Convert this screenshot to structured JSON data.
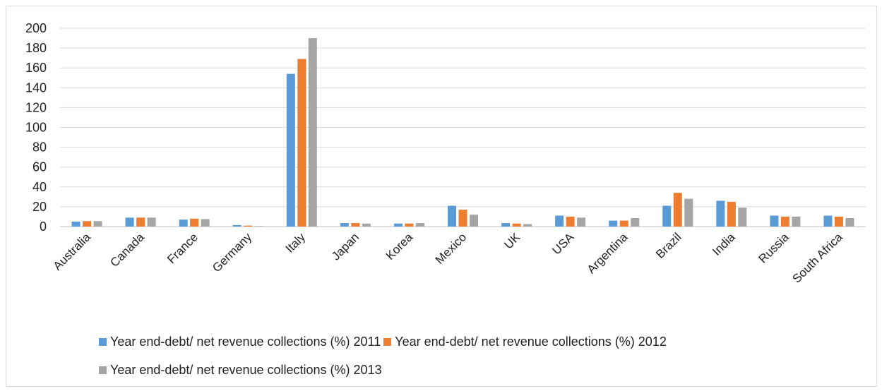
{
  "chart_data": {
    "type": "bar",
    "title": "",
    "xlabel": "",
    "ylabel": "",
    "ylim": [
      0,
      200
    ],
    "yticks": [
      0,
      20,
      40,
      60,
      80,
      100,
      120,
      140,
      160,
      180,
      200
    ],
    "grid": true,
    "legend_position": "bottom",
    "categories": [
      "Australia",
      "Canada",
      "France",
      "Germany",
      "Italy",
      "Japan",
      "Korea",
      "Mexico",
      "UK",
      "USA",
      "Argentina",
      "Brazil",
      "India",
      "Russia",
      "South Africa"
    ],
    "series": [
      {
        "name": "Year end-debt/ net revenue collections (%) 2011",
        "color": "#5b9bd5",
        "values": [
          5,
          9,
          7,
          1.5,
          154,
          3.5,
          3,
          21,
          3.5,
          11,
          6,
          21,
          26,
          11,
          11
        ]
      },
      {
        "name": "Year end-debt/ net revenue collections (%) 2012",
        "color": "#ed7d31",
        "values": [
          5.5,
          9,
          8,
          1,
          169,
          3.5,
          3,
          17,
          3,
          10,
          6,
          34,
          25,
          10,
          10
        ]
      },
      {
        "name": "Year end-debt/ net revenue collections (%) 2013",
        "color": "#a5a5a5",
        "values": [
          5.5,
          9,
          7.5,
          0.5,
          190,
          3,
          3.5,
          12,
          2.5,
          9,
          8.5,
          28,
          19,
          10,
          8.5
        ]
      }
    ]
  }
}
